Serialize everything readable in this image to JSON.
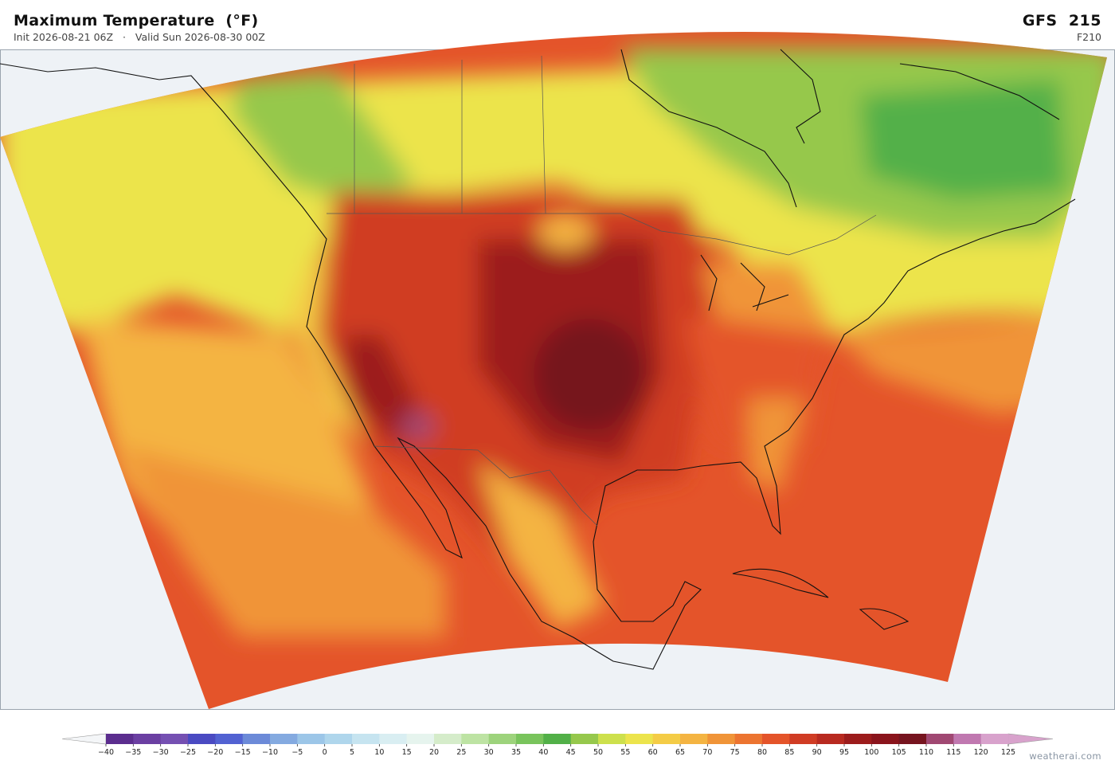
{
  "header": {
    "title": "Maximum Temperature  (°F)",
    "init": "Init 2026-08-21 06Z",
    "valid": "Valid Sun 2026-08-30 00Z",
    "model": "GFS  215",
    "forecast": "F210"
  },
  "colorbar": {
    "ticks": [
      {
        "value": -40,
        "label": "−40"
      },
      {
        "value": -35,
        "label": "−35"
      },
      {
        "value": -30,
        "label": "−30"
      },
      {
        "value": -25,
        "label": "−25"
      },
      {
        "value": -20,
        "label": "−20"
      },
      {
        "value": -15,
        "label": "−15"
      },
      {
        "value": -10,
        "label": "−10"
      },
      {
        "value": -5,
        "label": "−5"
      },
      0,
      5,
      10,
      15,
      20,
      25,
      30,
      35,
      40,
      45,
      50,
      55,
      60,
      65,
      70,
      75,
      80,
      85,
      90,
      95,
      100,
      105,
      110,
      115,
      120,
      125
    ],
    "colors": [
      "#5b2d8e",
      "#6b3fa2",
      "#7550b2",
      "#4a4ac2",
      "#5262d2",
      "#6c8ad8",
      "#84aae0",
      "#9cc6e8",
      "#afd6ec",
      "#c6e4f0",
      "#d9eef2",
      "#e6f4ee",
      "#d5ecca",
      "#bde3a3",
      "#9dd37c",
      "#79c45c",
      "#52b048",
      "#96c84c",
      "#cde04c",
      "#ece44c",
      "#f4cc46",
      "#f4b442",
      "#f09438",
      "#ec7430",
      "#e4542a",
      "#d03c24",
      "#b82a20",
      "#9c1c1c",
      "#8a141c",
      "#76141f",
      "#a04872",
      "#c078b0",
      "#d8a2cc"
    ],
    "under_color": "#f4f6f8",
    "over_color": "#d8a2cc"
  },
  "footer": {
    "credit": "weatherai.com"
  }
}
